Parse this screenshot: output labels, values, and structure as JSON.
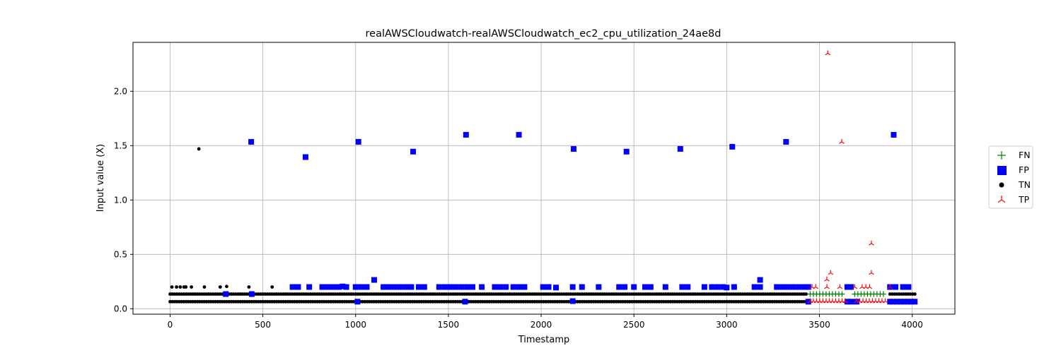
{
  "chart_data": {
    "type": "scatter",
    "title": "realAWSCloudwatch-realAWSCloudwatch_ec2_cpu_utilization_24ae8d",
    "xlabel": "Timestamp",
    "ylabel": "Input value (X)",
    "xlim": [
      -200,
      4230
    ],
    "ylim": [
      -0.05,
      2.45
    ],
    "xticks": [
      0,
      500,
      1000,
      1500,
      2000,
      2500,
      3000,
      3500,
      4000
    ],
    "yticks": [
      0.0,
      0.5,
      1.0,
      1.5,
      2.0
    ],
    "grid": true,
    "legend_position": "right",
    "legend": [
      {
        "label": "FN",
        "marker": "plus",
        "color": "#008000"
      },
      {
        "label": "FP",
        "marker": "square",
        "color": "#0000ff"
      },
      {
        "label": "TN",
        "marker": "circle",
        "color": "#000000"
      },
      {
        "label": "TP",
        "marker": "tri_up",
        "color": "#ff0000"
      }
    ],
    "series": [
      {
        "name": "TN",
        "marker": "circle",
        "color": "#000000",
        "bands": [
          {
            "x_start": 0,
            "x_end": 3440,
            "y": 0.135
          },
          {
            "x_start": 0,
            "x_end": 3440,
            "y": 0.065
          },
          {
            "x_start": 3880,
            "x_end": 4020,
            "y": 0.135
          }
        ],
        "points": [
          [
            155,
            1.47
          ],
          [
            10,
            0.2
          ],
          [
            35,
            0.2
          ],
          [
            55,
            0.2
          ],
          [
            75,
            0.2
          ],
          [
            85,
            0.2
          ],
          [
            115,
            0.2
          ],
          [
            185,
            0.2
          ],
          [
            270,
            0.2
          ],
          [
            305,
            0.205
          ],
          [
            425,
            0.2
          ],
          [
            550,
            0.2
          ]
        ]
      },
      {
        "name": "FP",
        "marker": "square",
        "color": "#0000ff",
        "points": [
          [
            437,
            1.535
          ],
          [
            730,
            1.395
          ],
          [
            1015,
            1.535
          ],
          [
            1310,
            1.445
          ],
          [
            1595,
            1.6
          ],
          [
            1880,
            1.6
          ],
          [
            2175,
            1.47
          ],
          [
            2460,
            1.445
          ],
          [
            2750,
            1.47
          ],
          [
            3030,
            1.49
          ],
          [
            3320,
            1.535
          ],
          [
            3900,
            1.6
          ],
          [
            1100,
            0.265
          ],
          [
            3180,
            0.265
          ],
          [
            660,
            0.2
          ],
          [
            690,
            0.2
          ],
          [
            750,
            0.2
          ],
          [
            820,
            0.2
          ],
          [
            850,
            0.2
          ],
          [
            870,
            0.2
          ],
          [
            890,
            0.2
          ],
          [
            910,
            0.2
          ],
          [
            930,
            0.205
          ],
          [
            950,
            0.2
          ],
          [
            1000,
            0.2
          ],
          [
            1030,
            0.2
          ],
          [
            1060,
            0.2
          ],
          [
            1150,
            0.2
          ],
          [
            1180,
            0.2
          ],
          [
            1210,
            0.2
          ],
          [
            1240,
            0.2
          ],
          [
            1270,
            0.2
          ],
          [
            1300,
            0.2
          ],
          [
            1340,
            0.2
          ],
          [
            1370,
            0.2
          ],
          [
            1450,
            0.2
          ],
          [
            1480,
            0.2
          ],
          [
            1510,
            0.2
          ],
          [
            1540,
            0.2
          ],
          [
            1570,
            0.2
          ],
          [
            1600,
            0.2
          ],
          [
            1630,
            0.2
          ],
          [
            1680,
            0.2
          ],
          [
            1750,
            0.2
          ],
          [
            1780,
            0.2
          ],
          [
            1810,
            0.2
          ],
          [
            1850,
            0.2
          ],
          [
            1880,
            0.2
          ],
          [
            1910,
            0.2
          ],
          [
            2010,
            0.2
          ],
          [
            2040,
            0.2
          ],
          [
            2080,
            0.195
          ],
          [
            2170,
            0.2
          ],
          [
            2220,
            0.2
          ],
          [
            2310,
            0.2
          ],
          [
            2420,
            0.2
          ],
          [
            2450,
            0.2
          ],
          [
            2500,
            0.2
          ],
          [
            2560,
            0.2
          ],
          [
            2590,
            0.2
          ],
          [
            2670,
            0.2
          ],
          [
            2760,
            0.2
          ],
          [
            2790,
            0.2
          ],
          [
            2880,
            0.2
          ],
          [
            2920,
            0.2
          ],
          [
            2950,
            0.2
          ],
          [
            2980,
            0.2
          ],
          [
            3000,
            0.195
          ],
          [
            3040,
            0.2
          ],
          [
            3150,
            0.2
          ],
          [
            3180,
            0.2
          ],
          [
            3270,
            0.2
          ],
          [
            3300,
            0.2
          ],
          [
            3330,
            0.2
          ],
          [
            3360,
            0.2
          ],
          [
            3390,
            0.2
          ],
          [
            3420,
            0.2
          ],
          [
            3440,
            0.2
          ],
          [
            3650,
            0.2
          ],
          [
            3670,
            0.2
          ],
          [
            3880,
            0.2
          ],
          [
            3910,
            0.2
          ],
          [
            3950,
            0.2
          ],
          [
            3980,
            0.2
          ],
          [
            300,
            0.135
          ],
          [
            440,
            0.135
          ],
          [
            1010,
            0.065
          ],
          [
            1590,
            0.065
          ],
          [
            2170,
            0.07
          ],
          [
            3440,
            0.065
          ],
          [
            3650,
            0.065
          ],
          [
            3670,
            0.065
          ],
          [
            3700,
            0.065
          ]
        ],
        "bands": [
          {
            "x_start": 3880,
            "x_end": 4020,
            "y": 0.065
          }
        ]
      },
      {
        "name": "FN",
        "marker": "plus",
        "color": "#008000",
        "bands": [
          {
            "x_start": 3450,
            "x_end": 3630,
            "y": 0.135
          },
          {
            "x_start": 3690,
            "x_end": 3860,
            "y": 0.135
          }
        ]
      },
      {
        "name": "TP",
        "marker": "tri_up",
        "color": "#ff0000",
        "points": [
          [
            3545,
            2.35
          ],
          [
            3620,
            1.535
          ],
          [
            3780,
            0.6
          ],
          [
            3560,
            0.33
          ],
          [
            3780,
            0.33
          ],
          [
            3540,
            0.27
          ],
          [
            3460,
            0.2
          ],
          [
            3480,
            0.2
          ],
          [
            3540,
            0.2
          ],
          [
            3610,
            0.2
          ],
          [
            3690,
            0.2
          ],
          [
            3730,
            0.2
          ],
          [
            3750,
            0.2
          ],
          [
            3770,
            0.2
          ],
          [
            3880,
            0.2
          ]
        ],
        "bands": [
          {
            "x_start": 3450,
            "x_end": 3640,
            "y": 0.07
          },
          {
            "x_start": 3700,
            "x_end": 3870,
            "y": 0.07
          }
        ]
      }
    ]
  }
}
